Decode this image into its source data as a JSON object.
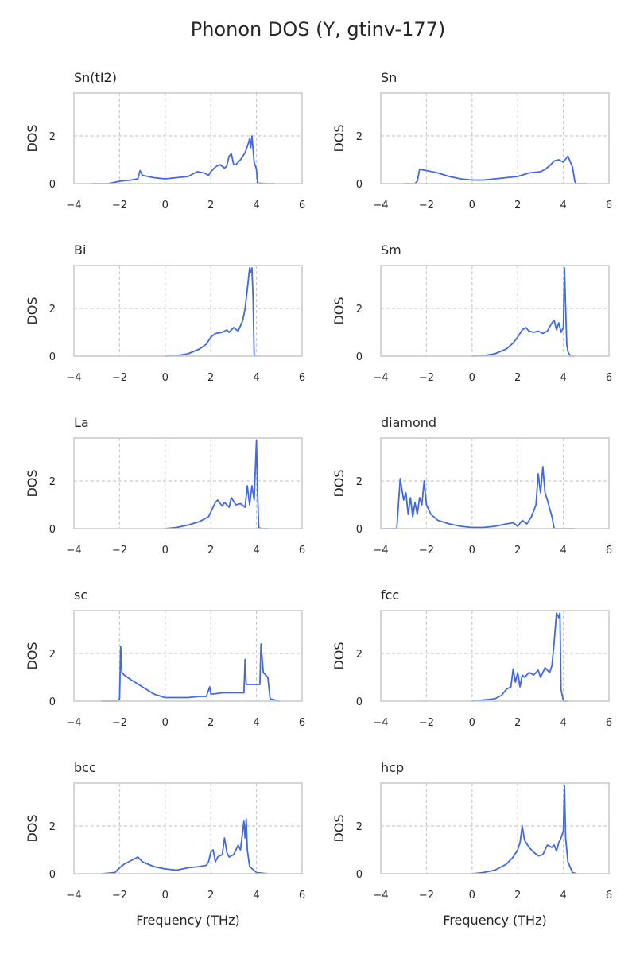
{
  "figure": {
    "title": "Phonon DOS (Y, gtinv-177)",
    "line_color": "#4169e1",
    "frame_color": "#cccccc",
    "grid_color": "#cccccc"
  },
  "chart_data": [
    {
      "type": "line",
      "title": "Sn(tI2)",
      "xlabel": "",
      "ylabel": "DOS",
      "xlim": [
        -4,
        6
      ],
      "ylim": [
        0,
        3.8
      ],
      "xticks": [
        -4,
        -2,
        0,
        2,
        4,
        6
      ],
      "yticks": [
        0,
        2
      ],
      "grid": "dashed",
      "series": [
        {
          "x": [
            -3.2,
            -2.5,
            -2.0,
            -1.5,
            -1.2,
            -1.1,
            -1.0,
            -0.5,
            0,
            0.5,
            1.0,
            1.4,
            1.7,
            1.9,
            2.0,
            2.2,
            2.4,
            2.6,
            2.7,
            2.8,
            2.9,
            3.0,
            3.1,
            3.3,
            3.5,
            3.65,
            3.7,
            3.75,
            3.8,
            3.9,
            4.0,
            4.05,
            4.5,
            4.8
          ],
          "y": [
            0,
            0,
            0.1,
            0.15,
            0.2,
            0.55,
            0.35,
            0.25,
            0.2,
            0.25,
            0.3,
            0.5,
            0.45,
            0.35,
            0.5,
            0.7,
            0.8,
            0.65,
            0.75,
            1.15,
            1.25,
            0.8,
            0.8,
            1.0,
            1.3,
            1.7,
            1.9,
            1.5,
            2.0,
            0.9,
            0.6,
            0.02,
            0,
            0
          ]
        }
      ]
    },
    {
      "type": "line",
      "title": "Sn",
      "xlabel": "",
      "ylabel": "DOS",
      "xlim": [
        -4,
        6
      ],
      "ylim": [
        0,
        3.8
      ],
      "xticks": [
        -4,
        -2,
        0,
        2,
        4,
        6
      ],
      "yticks": [
        0,
        2
      ],
      "grid": "dashed",
      "series": [
        {
          "x": [
            -3.0,
            -2.5,
            -2.4,
            -2.3,
            -2.0,
            -1.5,
            -1.0,
            -0.5,
            0,
            0.5,
            1.0,
            1.5,
            2.0,
            2.5,
            3.0,
            3.2,
            3.4,
            3.6,
            3.8,
            4.0,
            4.2,
            4.4,
            4.5,
            4.55,
            5.0
          ],
          "y": [
            0,
            0,
            0.1,
            0.6,
            0.55,
            0.45,
            0.3,
            0.2,
            0.15,
            0.15,
            0.2,
            0.25,
            0.3,
            0.45,
            0.5,
            0.6,
            0.75,
            0.95,
            1.0,
            0.9,
            1.15,
            0.7,
            0.1,
            0,
            0
          ]
        }
      ]
    },
    {
      "type": "line",
      "title": "Bi",
      "xlabel": "",
      "ylabel": "DOS",
      "xlim": [
        -4,
        6
      ],
      "ylim": [
        0,
        3.8
      ],
      "xticks": [
        -4,
        -2,
        0,
        2,
        4,
        6
      ],
      "yticks": [
        0,
        2
      ],
      "grid": "dashed",
      "series": [
        {
          "x": [
            0,
            0.5,
            1.0,
            1.5,
            1.8,
            2.0,
            2.2,
            2.5,
            2.7,
            2.8,
            3.0,
            3.2,
            3.4,
            3.5,
            3.6,
            3.7,
            3.75,
            3.8,
            3.85,
            3.9,
            4.0
          ],
          "y": [
            0,
            0.02,
            0.1,
            0.3,
            0.5,
            0.8,
            0.95,
            1.0,
            1.1,
            1.0,
            1.2,
            1.05,
            1.5,
            2.0,
            2.8,
            3.7,
            3.5,
            3.7,
            2.5,
            0.05,
            0
          ]
        }
      ]
    },
    {
      "type": "line",
      "title": "Sm",
      "xlabel": "",
      "ylabel": "DOS",
      "xlim": [
        -4,
        6
      ],
      "ylim": [
        0,
        3.8
      ],
      "xticks": [
        -4,
        -2,
        0,
        2,
        4,
        6
      ],
      "yticks": [
        0,
        2
      ],
      "grid": "dashed",
      "series": [
        {
          "x": [
            0,
            0.5,
            1.0,
            1.5,
            1.8,
            2.0,
            2.2,
            2.35,
            2.5,
            2.7,
            2.9,
            3.1,
            3.3,
            3.5,
            3.6,
            3.7,
            3.8,
            3.9,
            4.0,
            4.05,
            4.1,
            4.15,
            4.2,
            4.3,
            4.5
          ],
          "y": [
            0,
            0.02,
            0.1,
            0.3,
            0.55,
            0.8,
            1.1,
            1.2,
            1.05,
            1.0,
            1.05,
            0.95,
            1.05,
            1.4,
            1.5,
            1.1,
            1.4,
            1.0,
            1.2,
            3.7,
            2.0,
            0.5,
            0.2,
            0,
            0
          ]
        }
      ]
    },
    {
      "type": "line",
      "title": "La",
      "xlabel": "",
      "ylabel": "DOS",
      "xlim": [
        -4,
        6
      ],
      "ylim": [
        0,
        3.8
      ],
      "xticks": [
        -4,
        -2,
        0,
        2,
        4,
        6
      ],
      "yticks": [
        0,
        2
      ],
      "grid": "dashed",
      "series": [
        {
          "x": [
            0,
            0.5,
            1.0,
            1.5,
            1.9,
            2.0,
            2.2,
            2.3,
            2.5,
            2.6,
            2.8,
            2.9,
            3.1,
            3.3,
            3.5,
            3.6,
            3.7,
            3.8,
            3.9,
            4.0,
            4.05,
            4.1,
            4.2,
            4.5
          ],
          "y": [
            0,
            0.05,
            0.15,
            0.3,
            0.5,
            0.7,
            1.1,
            1.2,
            0.95,
            1.1,
            0.9,
            1.3,
            1.0,
            1.05,
            0.9,
            1.8,
            1.0,
            1.8,
            1.2,
            3.7,
            1.5,
            0.05,
            0,
            0
          ]
        }
      ]
    },
    {
      "type": "line",
      "title": "diamond",
      "xlabel": "",
      "ylabel": "DOS",
      "xlim": [
        -4,
        6
      ],
      "ylim": [
        0,
        3.8
      ],
      "xticks": [
        -4,
        -2,
        0,
        2,
        4,
        6
      ],
      "yticks": [
        0,
        2
      ],
      "grid": "dashed",
      "series": [
        {
          "x": [
            -3.9,
            -3.3,
            -3.15,
            -3.0,
            -2.9,
            -2.8,
            -2.7,
            -2.6,
            -2.5,
            -2.4,
            -2.3,
            -2.2,
            -2.1,
            -2.0,
            -1.8,
            -1.5,
            -1.0,
            -0.5,
            0,
            0.5,
            1.0,
            1.5,
            1.8,
            2.0,
            2.2,
            2.4,
            2.6,
            2.8,
            2.9,
            3.0,
            3.1,
            3.2,
            3.3,
            3.5,
            3.6,
            4.0,
            4.5
          ],
          "y": [
            0,
            0,
            2.1,
            1.2,
            1.5,
            0.6,
            1.3,
            0.5,
            1.1,
            0.6,
            1.3,
            1.0,
            2.0,
            1.0,
            0.6,
            0.35,
            0.2,
            0.1,
            0.05,
            0.05,
            0.1,
            0.2,
            0.25,
            0.1,
            0.35,
            0.2,
            0.5,
            1.0,
            2.3,
            1.5,
            2.6,
            1.5,
            1.2,
            0.5,
            0,
            0,
            0
          ]
        }
      ]
    },
    {
      "type": "line",
      "title": "sc",
      "xlabel": "",
      "ylabel": "DOS",
      "xlim": [
        -4,
        6
      ],
      "ylim": [
        0,
        3.8
      ],
      "xticks": [
        -4,
        -2,
        0,
        2,
        4,
        6
      ],
      "yticks": [
        0,
        2
      ],
      "grid": "dashed",
      "series": [
        {
          "x": [
            -2.8,
            -2.1,
            -2.0,
            -1.95,
            -1.9,
            -1.8,
            -1.5,
            -1.0,
            -0.5,
            0,
            0.5,
            1.0,
            1.5,
            1.8,
            1.95,
            2.0,
            2.1,
            2.5,
            3.0,
            3.45,
            3.5,
            3.55,
            4.0,
            4.15,
            4.2,
            4.3,
            4.5,
            4.6,
            5.0
          ],
          "y": [
            0,
            0,
            0.1,
            2.3,
            1.2,
            1.1,
            0.9,
            0.6,
            0.3,
            0.15,
            0.15,
            0.15,
            0.2,
            0.2,
            0.6,
            0.3,
            0.3,
            0.35,
            0.35,
            0.35,
            1.75,
            0.7,
            0.7,
            0.7,
            2.4,
            1.2,
            1.0,
            0.1,
            0
          ]
        }
      ]
    },
    {
      "type": "line",
      "title": "fcc",
      "xlabel": "",
      "ylabel": "DOS",
      "xlim": [
        -4,
        6
      ],
      "ylim": [
        0,
        3.8
      ],
      "xticks": [
        -4,
        -2,
        0,
        2,
        4,
        6
      ],
      "yticks": [
        0,
        2
      ],
      "grid": "dashed",
      "series": [
        {
          "x": [
            0,
            0.5,
            1.0,
            1.3,
            1.5,
            1.7,
            1.8,
            1.9,
            2.0,
            2.1,
            2.2,
            2.3,
            2.5,
            2.7,
            2.9,
            3.0,
            3.2,
            3.4,
            3.5,
            3.6,
            3.7,
            3.8,
            3.85,
            3.9,
            4.0,
            4.2
          ],
          "y": [
            0,
            0.05,
            0.1,
            0.25,
            0.5,
            0.6,
            1.35,
            0.8,
            1.2,
            0.6,
            1.1,
            1.0,
            1.2,
            1.1,
            1.3,
            1.0,
            1.4,
            1.2,
            1.5,
            2.5,
            3.7,
            3.5,
            3.7,
            0.5,
            0,
            0
          ]
        }
      ]
    },
    {
      "type": "line",
      "title": "bcc",
      "xlabel": "",
      "ylabel": "DOS",
      "xlim": [
        -4,
        6
      ],
      "ylim": [
        0,
        3.8
      ],
      "xticks": [
        -4,
        -2,
        0,
        2,
        4,
        6
      ],
      "yticks": [
        0,
        2
      ],
      "grid": "dashed",
      "series": [
        {
          "x": [
            -2.8,
            -2.2,
            -2.0,
            -1.8,
            -1.5,
            -1.2,
            -1.0,
            -0.5,
            0,
            0.5,
            1.0,
            1.5,
            1.8,
            1.9,
            2.0,
            2.1,
            2.2,
            2.3,
            2.5,
            2.6,
            2.7,
            2.8,
            3.0,
            3.2,
            3.3,
            3.4,
            3.45,
            3.5,
            3.55,
            3.6,
            3.7,
            4.0,
            4.5
          ],
          "y": [
            0,
            0.05,
            0.25,
            0.4,
            0.55,
            0.7,
            0.5,
            0.3,
            0.2,
            0.15,
            0.25,
            0.3,
            0.35,
            0.5,
            0.9,
            1.0,
            0.5,
            0.7,
            0.8,
            1.5,
            0.9,
            0.7,
            0.8,
            1.2,
            1.0,
            1.8,
            2.2,
            1.5,
            2.3,
            1.0,
            0.3,
            0.05,
            0
          ]
        }
      ]
    },
    {
      "type": "line",
      "title": "hcp",
      "xlabel": "",
      "ylabel": "DOS",
      "xlim": [
        -4,
        6
      ],
      "ylim": [
        0,
        3.8
      ],
      "xticks": [
        -4,
        -2,
        0,
        2,
        4,
        6
      ],
      "yticks": [
        0,
        2
      ],
      "grid": "dashed",
      "series": [
        {
          "x": [
            0,
            0.5,
            1.0,
            1.5,
            1.8,
            2.0,
            2.1,
            2.2,
            2.3,
            2.5,
            2.7,
            2.9,
            3.1,
            3.3,
            3.5,
            3.6,
            3.7,
            3.8,
            3.9,
            4.0,
            4.05,
            4.1,
            4.2,
            4.4,
            4.6
          ],
          "y": [
            0,
            0.05,
            0.15,
            0.4,
            0.7,
            1.0,
            1.3,
            2.0,
            1.4,
            1.1,
            0.9,
            0.75,
            0.8,
            1.2,
            1.1,
            1.2,
            0.95,
            1.3,
            1.5,
            1.8,
            3.7,
            1.5,
            0.5,
            0.05,
            0
          ]
        }
      ]
    }
  ],
  "bottom_xlabel": "Frequency (THz)"
}
